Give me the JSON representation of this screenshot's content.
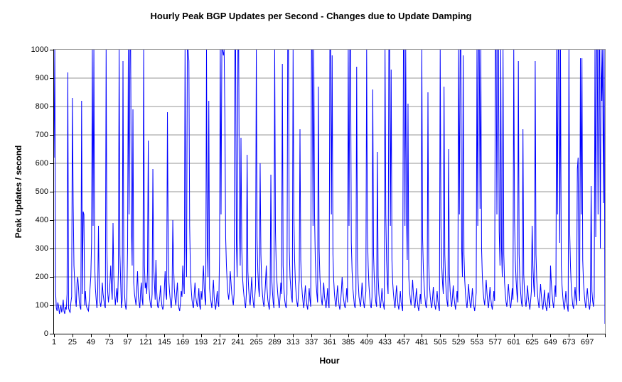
{
  "title": "Hourly Peak BGP Updates per Second - Changes due to Update Damping",
  "chart_data": {
    "type": "line",
    "title": "Hourly Peak BGP Updates per Second - Changes due to Update Damping",
    "xlabel": "Hour",
    "ylabel": "Peak Updates / second",
    "xlim": [
      1,
      720
    ],
    "ylim": [
      0,
      1000
    ],
    "grid": "horizontal",
    "legend": "none",
    "line_color": "#0000ff",
    "gridline_color": "#949494",
    "axis_color": "#000000",
    "y_ticks": [
      0,
      100,
      200,
      300,
      400,
      500,
      600,
      700,
      800,
      900,
      1000
    ],
    "x_ticks": [
      1,
      25,
      49,
      73,
      97,
      121,
      145,
      169,
      193,
      217,
      241,
      265,
      289,
      313,
      337,
      361,
      385,
      409,
      433,
      457,
      481,
      505,
      529,
      553,
      577,
      601,
      625,
      649,
      673,
      697
    ],
    "x_start_hour": 1,
    "values_clipped_at": 1000,
    "values": [
      620,
      1000,
      150,
      90,
      80,
      110,
      95,
      70,
      85,
      100,
      75,
      90,
      120,
      80,
      70,
      95,
      85,
      140,
      920,
      90,
      80,
      75,
      110,
      130,
      830,
      460,
      240,
      180,
      120,
      95,
      180,
      200,
      160,
      110,
      95,
      85,
      820,
      140,
      430,
      420,
      100,
      150,
      100,
      90,
      85,
      80,
      120,
      160,
      200,
      320,
      1000,
      380,
      1000,
      250,
      160,
      120,
      90,
      140,
      380,
      160,
      110,
      95,
      120,
      180,
      140,
      120,
      100,
      90,
      1000,
      300,
      150,
      110,
      140,
      180,
      240,
      160,
      120,
      390,
      200,
      150,
      100,
      130,
      160,
      110,
      220,
      1000,
      280,
      180,
      90,
      120,
      960,
      260,
      140,
      100,
      85,
      120,
      300,
      1000,
      420,
      1000,
      1000,
      380,
      240,
      790,
      180,
      140,
      120,
      100,
      160,
      220,
      130,
      110,
      90,
      150,
      180,
      120,
      100,
      1000,
      240,
      160,
      180,
      140,
      220,
      680,
      160,
      120,
      100,
      90,
      140,
      580,
      240,
      180,
      120,
      260,
      150,
      100,
      90,
      110,
      130,
      170,
      120,
      95,
      85,
      100,
      160,
      220,
      140,
      120,
      780,
      320,
      180,
      140,
      110,
      90,
      130,
      400,
      240,
      160,
      120,
      100,
      140,
      180,
      120,
      90,
      80,
      110,
      150,
      130,
      240,
      180,
      140,
      1000,
      320,
      200,
      1000,
      1000,
      960,
      380,
      220,
      160,
      120,
      100,
      90,
      140,
      180,
      130,
      110,
      95,
      120,
      160,
      100,
      85,
      150,
      120,
      180,
      240,
      160,
      120,
      100,
      1000,
      300,
      200,
      820,
      160,
      130,
      110,
      90,
      140,
      190,
      130,
      100,
      85,
      120,
      150,
      110,
      95,
      280,
      1000,
      420,
      1000,
      1000,
      980,
      1000,
      760,
      340,
      240,
      180,
      140,
      120,
      160,
      220,
      180,
      140,
      120,
      100,
      140,
      1000,
      1000,
      320,
      200,
      1000,
      1000,
      380,
      240,
      690,
      300,
      200,
      160,
      130,
      110,
      90,
      140,
      630,
      220,
      160,
      120,
      100,
      150,
      200,
      140,
      110,
      90,
      130,
      170,
      1000,
      340,
      220,
      160,
      130,
      600,
      280,
      180,
      140,
      110,
      95,
      130,
      180,
      240,
      160,
      120,
      100,
      85,
      140,
      560,
      200,
      150,
      110,
      90,
      1000,
      360,
      240,
      180,
      140,
      110,
      90,
      130,
      180,
      140,
      950,
      240,
      160,
      120,
      100,
      90,
      140,
      1000,
      1000,
      300,
      200,
      160,
      130,
      110,
      1000,
      420,
      260,
      180,
      140,
      110,
      95,
      140,
      190,
      720,
      260,
      180,
      140,
      110,
      90,
      130,
      170,
      130,
      100,
      85,
      120,
      160,
      120,
      95,
      1000,
      1000,
      380,
      1000,
      420,
      260,
      180,
      140,
      110,
      870,
      300,
      200,
      150,
      120,
      100,
      140,
      180,
      130,
      110,
      90,
      120,
      160,
      110,
      90,
      1000,
      1000,
      420,
      980,
      280,
      190,
      140,
      110,
      95,
      130,
      170,
      130,
      100,
      85,
      110,
      150,
      200,
      150,
      120,
      100,
      90,
      120,
      160,
      110,
      1000,
      380,
      1000,
      1000,
      320,
      220,
      160,
      130,
      100,
      90,
      140,
      940,
      260,
      180,
      130,
      110,
      95,
      130,
      180,
      140,
      110,
      90,
      120,
      150,
      1000,
      360,
      240,
      170,
      130,
      100,
      90,
      130,
      860,
      280,
      190,
      140,
      110,
      95,
      640,
      200,
      140,
      110,
      90,
      120,
      160,
      120,
      100,
      85,
      1000,
      420,
      260,
      180,
      140,
      1000,
      1000,
      380,
      930,
      260,
      180,
      140,
      110,
      90,
      130,
      170,
      130,
      100,
      85,
      115,
      150,
      110,
      95,
      80,
      1000,
      1000,
      380,
      1000,
      420,
      260,
      810,
      200,
      150,
      120,
      100,
      140,
      190,
      140,
      110,
      90,
      125,
      160,
      120,
      95,
      80,
      110,
      140,
      105,
      1000,
      340,
      230,
      170,
      130,
      100,
      90,
      130,
      850,
      250,
      170,
      130,
      105,
      90,
      125,
      165,
      125,
      100,
      85,
      115,
      150,
      115,
      95,
      80,
      1000,
      380,
      240,
      180,
      140,
      870,
      280,
      190,
      140,
      110,
      95,
      650,
      210,
      150,
      115,
      95,
      130,
      170,
      130,
      105,
      85,
      115,
      150,
      110,
      1000,
      420,
      1000,
      1000,
      300,
      200,
      980,
      280,
      190,
      140,
      110,
      90,
      130,
      175,
      135,
      105,
      90,
      120,
      160,
      120,
      95,
      80,
      110,
      145,
      1000,
      380,
      1000,
      1000,
      440,
      1000,
      300,
      200,
      150,
      120,
      100,
      140,
      190,
      145,
      110,
      90,
      125,
      165,
      125,
      100,
      85,
      115,
      150,
      115,
      1000,
      1000,
      420,
      1000,
      1000,
      360,
      240,
      1000,
      300,
      200,
      1000,
      280,
      180,
      140,
      110,
      95,
      135,
      175,
      135,
      105,
      90,
      120,
      160,
      120,
      1000,
      400,
      260,
      190,
      145,
      110,
      960,
      280,
      190,
      145,
      110,
      95,
      720,
      210,
      150,
      115,
      95,
      130,
      170,
      130,
      105,
      85,
      115,
      150,
      380,
      240,
      170,
      130,
      960,
      280,
      190,
      140,
      110,
      90,
      130,
      175,
      135,
      105,
      85,
      115,
      155,
      115,
      95,
      80,
      110,
      145,
      110,
      90,
      240,
      180,
      140,
      110,
      90,
      130,
      170,
      130,
      1000,
      420,
      1000,
      1000,
      320,
      1000,
      240,
      170,
      130,
      100,
      85,
      115,
      150,
      115,
      95,
      78,
      1000,
      360,
      240,
      170,
      130,
      100,
      88,
      125,
      165,
      125,
      100,
      580,
      620,
      155,
      115,
      970,
      420,
      970,
      260,
      180,
      140,
      110,
      90,
      125,
      160,
      125,
      100,
      85,
      115,
      520,
      150,
      115,
      95,
      130,
      1000,
      340,
      1000,
      1000,
      420,
      1000,
      1000,
      300,
      1000,
      820,
      1000,
      460,
      1000,
      35
    ]
  }
}
